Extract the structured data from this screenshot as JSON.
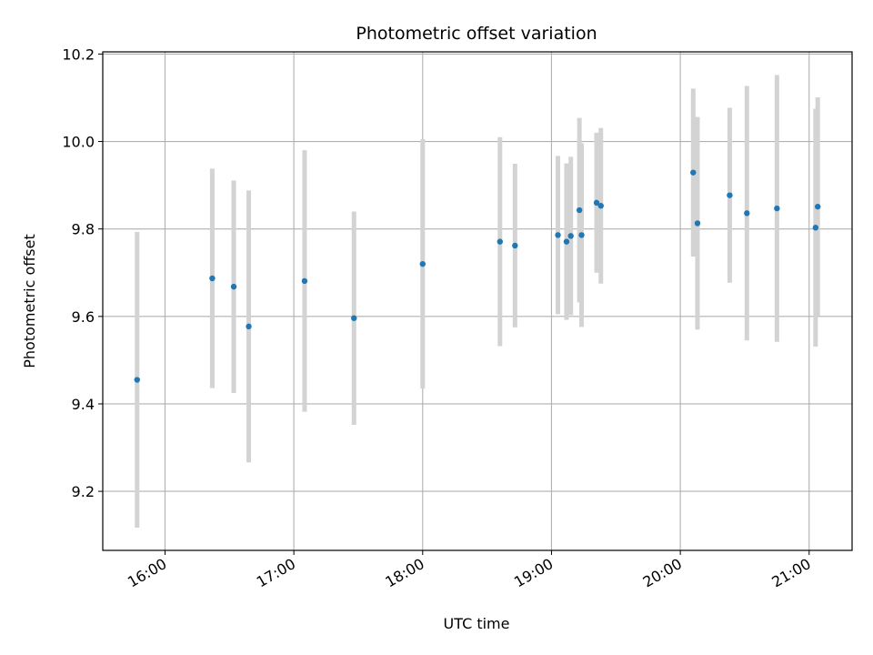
{
  "chart_data": {
    "type": "scatter",
    "title": "Photometric offset variation",
    "xlabel": "UTC time",
    "ylabel": "Photometric offset",
    "x_ticks": [
      "16:00",
      "17:00",
      "18:00",
      "19:00",
      "20:00",
      "21:00"
    ],
    "y_ticks": [
      "9.2",
      "9.4",
      "9.6",
      "9.8",
      "10.0",
      "10.2"
    ],
    "x_range": [
      "15:31",
      "21:20"
    ],
    "ylim": [
      9.065,
      10.205
    ],
    "grid": true,
    "marker_color": "#1f77b4",
    "errorbar_color": "#d3d3d3",
    "points": [
      {
        "time": "15:47",
        "y": 9.455,
        "err": 0.338
      },
      {
        "time": "16:22",
        "y": 9.687,
        "err": 0.251
      },
      {
        "time": "16:32",
        "y": 9.668,
        "err": 0.243
      },
      {
        "time": "16:39",
        "y": 9.577,
        "err": 0.311
      },
      {
        "time": "17:05",
        "y": 9.681,
        "err": 0.299
      },
      {
        "time": "17:28",
        "y": 9.596,
        "err": 0.244
      },
      {
        "time": "18:00",
        "y": 9.72,
        "err": 0.285
      },
      {
        "time": "18:36",
        "y": 9.771,
        "err": 0.239
      },
      {
        "time": "18:43",
        "y": 9.762,
        "err": 0.187
      },
      {
        "time": "19:03",
        "y": 9.786,
        "err": 0.181
      },
      {
        "time": "19:07",
        "y": 9.771,
        "err": 0.179
      },
      {
        "time": "19:09",
        "y": 9.784,
        "err": 0.181
      },
      {
        "time": "19:13",
        "y": 9.843,
        "err": 0.211
      },
      {
        "time": "19:14",
        "y": 9.786,
        "err": 0.21
      },
      {
        "time": "19:21",
        "y": 9.86,
        "err": 0.16
      },
      {
        "time": "19:23",
        "y": 9.853,
        "err": 0.178
      },
      {
        "time": "20:06",
        "y": 9.929,
        "err": 0.192
      },
      {
        "time": "20:08",
        "y": 9.813,
        "err": 0.243
      },
      {
        "time": "20:23",
        "y": 9.877,
        "err": 0.2
      },
      {
        "time": "20:31",
        "y": 9.836,
        "err": 0.291
      },
      {
        "time": "20:45",
        "y": 9.847,
        "err": 0.305
      },
      {
        "time": "21:03",
        "y": 9.803,
        "err": 0.272
      },
      {
        "time": "21:04",
        "y": 9.851,
        "err": 0.25
      }
    ]
  }
}
